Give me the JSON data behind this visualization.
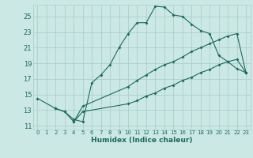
{
  "xlabel": "Humidex (Indice chaleur)",
  "bg_color": "#cce8e4",
  "grid_color": "#aad0cc",
  "line_color": "#1a6b5e",
  "xlim": [
    -0.5,
    23.5
  ],
  "ylim": [
    10.5,
    26.5
  ],
  "xticks": [
    0,
    1,
    2,
    3,
    4,
    5,
    6,
    7,
    8,
    9,
    10,
    11,
    12,
    13,
    14,
    15,
    16,
    17,
    18,
    19,
    20,
    21,
    22,
    23
  ],
  "yticks": [
    11,
    13,
    15,
    17,
    19,
    21,
    23,
    25
  ],
  "series1_x": [
    0,
    2,
    3,
    4,
    5,
    6,
    7,
    8,
    9,
    10,
    11,
    12,
    13,
    14,
    15,
    16,
    17,
    18,
    19,
    20,
    21,
    22,
    23
  ],
  "series1_y": [
    14.5,
    13.2,
    12.8,
    11.8,
    11.5,
    16.5,
    17.5,
    18.8,
    21.0,
    22.8,
    24.2,
    24.2,
    26.3,
    26.2,
    25.2,
    25.0,
    24.0,
    23.2,
    22.8,
    20.0,
    19.2,
    18.3,
    17.8
  ],
  "series2_x": [
    2,
    3,
    4,
    5,
    10,
    11,
    12,
    13,
    14,
    15,
    16,
    17,
    18,
    19,
    20,
    21,
    22,
    23
  ],
  "series2_y": [
    13.2,
    12.8,
    11.5,
    13.5,
    16.0,
    16.8,
    17.5,
    18.2,
    18.8,
    19.2,
    19.8,
    20.5,
    21.0,
    21.5,
    22.0,
    22.5,
    22.8,
    17.8
  ],
  "series3_x": [
    4,
    5,
    10,
    11,
    12,
    13,
    14,
    15,
    16,
    17,
    18,
    19,
    20,
    21,
    22,
    23
  ],
  "series3_y": [
    11.5,
    12.8,
    13.8,
    14.2,
    14.8,
    15.2,
    15.8,
    16.2,
    16.8,
    17.2,
    17.8,
    18.2,
    18.8,
    19.2,
    19.5,
    17.8
  ]
}
